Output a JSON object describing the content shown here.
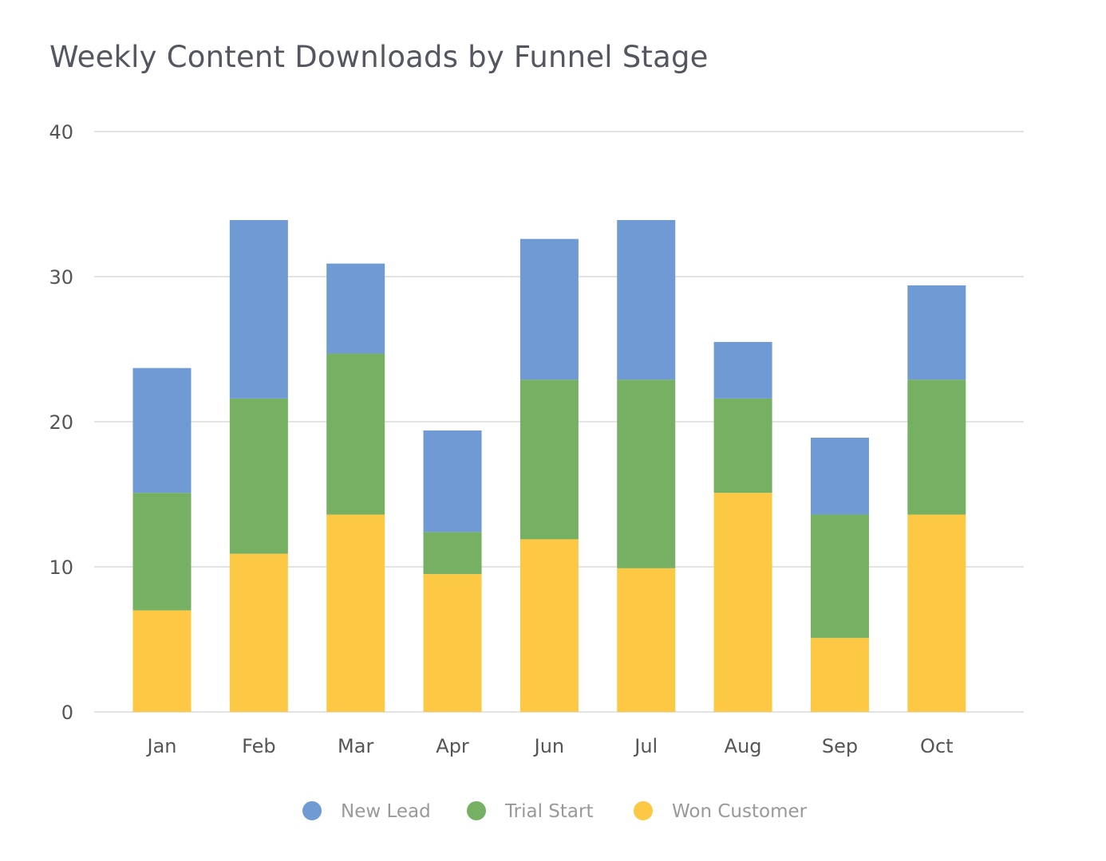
{
  "chart_data": {
    "type": "bar",
    "stacked": true,
    "title": "Weekly Content Downloads by Funnel Stage",
    "xlabel": "",
    "ylabel": "",
    "ylim": [
      0,
      40
    ],
    "yticks": [
      0,
      10,
      20,
      30,
      40
    ],
    "grid": true,
    "legend": "bottom",
    "categories": [
      "Jan",
      "Feb",
      "Mar",
      "Apr",
      "Jun",
      "Jul",
      "Aug",
      "Sep",
      "Oct"
    ],
    "series": [
      {
        "name": "Won Customer",
        "color": "#fdc844",
        "values": [
          7.0,
          10.9,
          13.6,
          9.5,
          11.9,
          9.9,
          15.1,
          5.1,
          13.6
        ]
      },
      {
        "name": "Trial Start",
        "color": "#76b163",
        "values": [
          8.1,
          10.7,
          11.1,
          2.9,
          11.0,
          13.0,
          6.5,
          8.5,
          9.3
        ]
      },
      {
        "name": "New Lead",
        "color": "#6f9ad3",
        "values": [
          8.6,
          12.3,
          6.2,
          7.0,
          9.7,
          11.0,
          3.9,
          5.3,
          6.5
        ]
      }
    ],
    "legend_order": [
      "New Lead",
      "Trial Start",
      "Won Customer"
    ]
  }
}
